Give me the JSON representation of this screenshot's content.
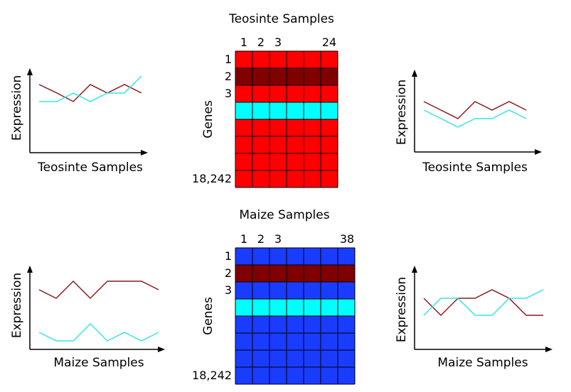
{
  "colors": {
    "teosinte_cell": "#ff0000",
    "maize_cell": "#1a3cff",
    "highlight_dark": "#800000",
    "highlight_cyan": "#00ffff",
    "line_dark": "#8b1a1a",
    "line_cyan": "#33e6e6"
  },
  "panels": [
    {
      "id": "teosinte",
      "title": "Teosinte Samples",
      "sample_labels": [
        "1",
        "2",
        "3",
        "24"
      ],
      "gene_labels": [
        "1",
        "2",
        "3",
        "18,242"
      ],
      "gene_axis_label": "Genes",
      "cell_color_key": "teosinte_cell",
      "left_plot": {
        "xlabel": "Teosinte Samples",
        "ylabel": "Expression"
      },
      "right_plot": {
        "xlabel": "Teosinte Samples",
        "ylabel": "Expression"
      }
    },
    {
      "id": "maize",
      "title": "Maize Samples",
      "sample_labels": [
        "1",
        "2",
        "3",
        "38"
      ],
      "gene_labels": [
        "1",
        "2",
        "3",
        "18,242"
      ],
      "gene_axis_label": "Genes",
      "cell_color_key": "maize_cell",
      "left_plot": {
        "xlabel": "Maize Samples",
        "ylabel": "Expression"
      },
      "right_plot": {
        "xlabel": "Maize Samples",
        "ylabel": "Expression"
      }
    }
  ]
}
